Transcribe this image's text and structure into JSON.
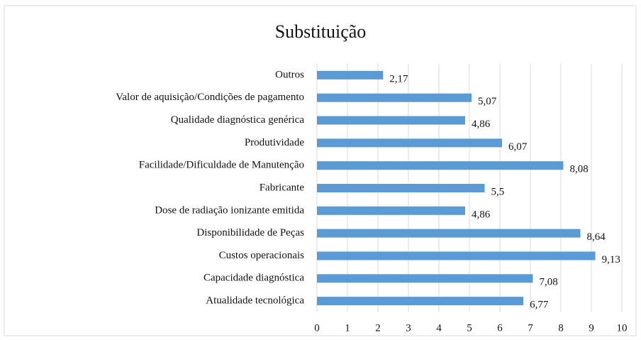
{
  "chart_data": {
    "type": "bar",
    "orientation": "horizontal",
    "title": "Substituição",
    "categories": [
      "Outros",
      "Valor de aquisição/Condições de pagamento",
      "Qualidade diagnóstica genérica",
      "Produtividade",
      "Facilidade/Dificuldade de Manutenção",
      "Fabricante",
      "Dose de radiação ionizante emitida",
      "Disponibilidade de Peças",
      "Custos operacionais",
      "Capacidade diagnóstica",
      "Atualidade tecnológica"
    ],
    "values": [
      2.17,
      5.07,
      4.86,
      6.07,
      8.08,
      5.5,
      4.86,
      8.64,
      9.13,
      7.08,
      6.77
    ],
    "value_labels": [
      "2,17",
      "5,07",
      "4,86",
      "6,07",
      "8,08",
      "5,5",
      "4,86",
      "8,64",
      "9,13",
      "7,08",
      "6,77"
    ],
    "color": "#5b9bd5",
    "xlim": [
      0,
      10
    ],
    "xticks": [
      0,
      1,
      2,
      3,
      4,
      5,
      6,
      7,
      8,
      9,
      10
    ],
    "grid": true
  }
}
